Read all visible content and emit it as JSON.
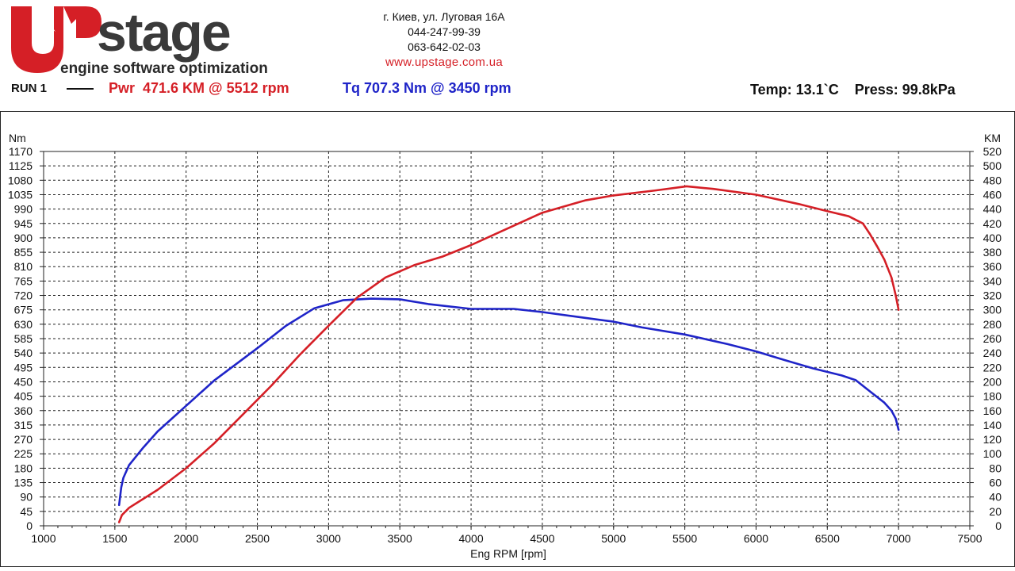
{
  "header": {
    "brand": "stage",
    "tagline": "engine software optimization",
    "address": "г. Киев, ул. Луговая 16А",
    "phone1": "044-247-99-39",
    "phone2": "063-642-02-03",
    "website": "www.upstage.com.ua",
    "run_label": "RUN 1",
    "power_summary": "Pwr  471.6 KM @ 5512 rpm",
    "torque_summary": "Tq 707.3 Nm @ 3450 rpm",
    "conditions": "Temp: 13.1`C    Press: 99.8kPa"
  },
  "colors": {
    "power": "#d51f26",
    "torque": "#1f24c8",
    "brand_red": "#d51f26",
    "brand_dark": "#3a3a3a",
    "grid": "#222222"
  },
  "chart_data": {
    "type": "line",
    "xlabel": "Eng RPM [rpm]",
    "y_left_label": "Nm",
    "y_right_label": "KM",
    "xlim": [
      1000,
      7500
    ],
    "x_ticks": [
      1000,
      1500,
      2000,
      2500,
      3000,
      3500,
      4000,
      4500,
      5000,
      5500,
      6000,
      6500,
      7000,
      7500
    ],
    "y_left_lim": [
      0,
      1170
    ],
    "y_left_ticks": [
      0,
      45,
      90,
      135,
      180,
      225,
      270,
      315,
      360,
      405,
      450,
      495,
      540,
      585,
      630,
      675,
      720,
      765,
      810,
      855,
      900,
      945,
      990,
      1035,
      1080,
      1125,
      1170
    ],
    "y_right_lim": [
      0,
      520
    ],
    "y_right_ticks": [
      0,
      20,
      40,
      60,
      80,
      100,
      120,
      140,
      160,
      180,
      200,
      220,
      240,
      260,
      280,
      300,
      320,
      340,
      360,
      380,
      400,
      420,
      440,
      460,
      480,
      500,
      520
    ],
    "grid": true,
    "series": [
      {
        "name": "Tq",
        "axis": "left",
        "color": "#1f24c8",
        "x": [
          1530,
          1545,
          1560,
          1600,
          1700,
          1800,
          2000,
          2200,
          2500,
          2700,
          2900,
          3100,
          3300,
          3500,
          3700,
          4000,
          4300,
          4500,
          4800,
          5000,
          5200,
          5500,
          5800,
          6000,
          6200,
          6400,
          6600,
          6700,
          6800,
          6900,
          6950,
          6980,
          7000
        ],
        "y": [
          65,
          120,
          150,
          190,
          245,
          295,
          375,
          455,
          555,
          625,
          680,
          705,
          710,
          708,
          693,
          678,
          678,
          668,
          650,
          638,
          620,
          598,
          568,
          545,
          518,
          492,
          470,
          455,
          420,
          385,
          360,
          335,
          300
        ]
      },
      {
        "name": "Pwr",
        "axis": "right",
        "color": "#d51f26",
        "x": [
          1530,
          1550,
          1600,
          1800,
          2000,
          2200,
          2400,
          2600,
          2800,
          3000,
          3200,
          3400,
          3600,
          3800,
          4000,
          4200,
          4500,
          4800,
          5000,
          5300,
          5512,
          5700,
          6000,
          6300,
          6500,
          6650,
          6750,
          6800,
          6850,
          6900,
          6950,
          6980,
          7000
        ],
        "y": [
          5,
          15,
          25,
          50,
          80,
          115,
          155,
          195,
          238,
          278,
          317,
          345,
          362,
          374,
          390,
          408,
          435,
          452,
          459,
          466,
          471.6,
          468,
          460,
          447,
          437,
          430,
          420,
          405,
          388,
          370,
          345,
          320,
          300
        ]
      }
    ]
  }
}
